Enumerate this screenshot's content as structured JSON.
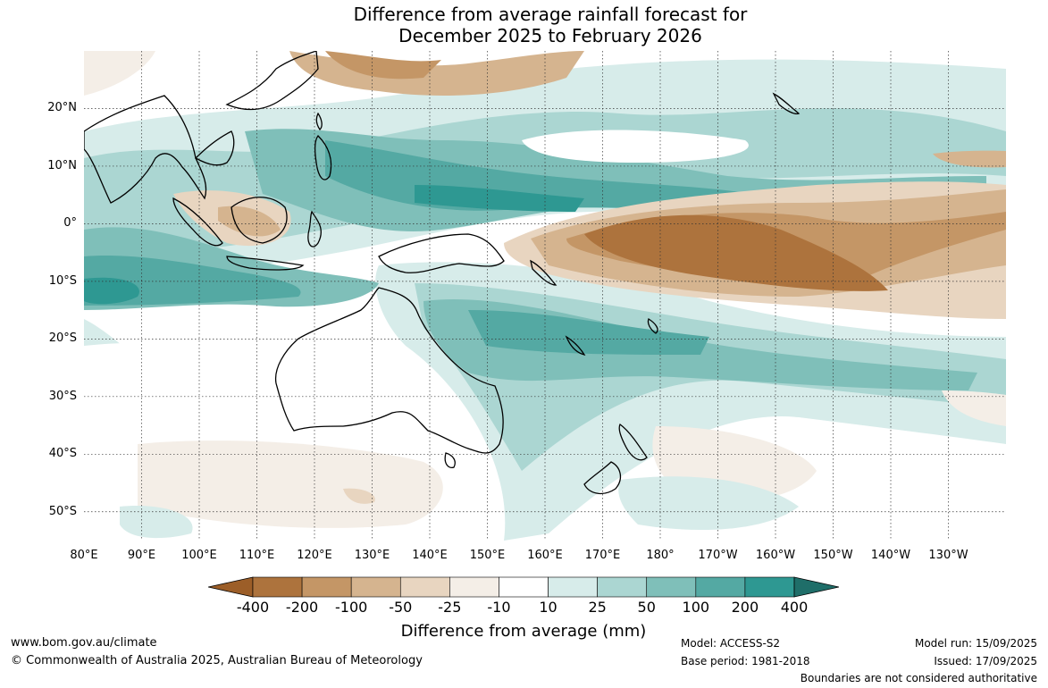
{
  "title": {
    "line1": "Difference from average rainfall forecast for",
    "line2": "December 2025 to February 2026"
  },
  "map": {
    "lat_labels": [
      "20°N",
      "10°N",
      "0°",
      "10°S",
      "20°S",
      "30°S",
      "40°S",
      "50°S"
    ],
    "lat_values": [
      20,
      10,
      0,
      -10,
      -20,
      -30,
      -40,
      -50
    ],
    "lon_labels": [
      "80°E",
      "90°E",
      "100°E",
      "110°E",
      "120°E",
      "130°E",
      "140°E",
      "150°E",
      "160°E",
      "170°E",
      "180°",
      "170°W",
      "160°W",
      "150°W",
      "140°W",
      "130°W"
    ],
    "lon_values": [
      80,
      90,
      100,
      110,
      120,
      130,
      140,
      150,
      160,
      170,
      180,
      190,
      200,
      210,
      220,
      230
    ],
    "lon_range": [
      80,
      240
    ],
    "lat_range": [
      -55,
      30
    ]
  },
  "colorbar": {
    "labels": [
      "-400",
      "-200",
      "-100",
      "-50",
      "-25",
      "-10",
      "10",
      "25",
      "50",
      "100",
      "200",
      "400"
    ],
    "colors": [
      "#9c5e28",
      "#ad733d",
      "#c49666",
      "#d5b48f",
      "#e8d5c0",
      "#f4eee7",
      "#ffffff",
      "#d7ecea",
      "#abd6d2",
      "#7fbfb9",
      "#54a9a3",
      "#2e9892",
      "#1f6e69"
    ],
    "title": "Difference from average (mm)"
  },
  "footer": {
    "url": "www.bom.gov.au/climate",
    "copyright": "© Commonwealth of Australia 2025, Australian Bureau of Meteorology",
    "model": "Model: ACCESS-S2",
    "base_period": "Base period: 1981-2018",
    "model_run": "Model run: 15/09/2025",
    "issued": "Issued: 17/09/2025",
    "disclaimer": "Boundaries are not considered authoritative"
  }
}
